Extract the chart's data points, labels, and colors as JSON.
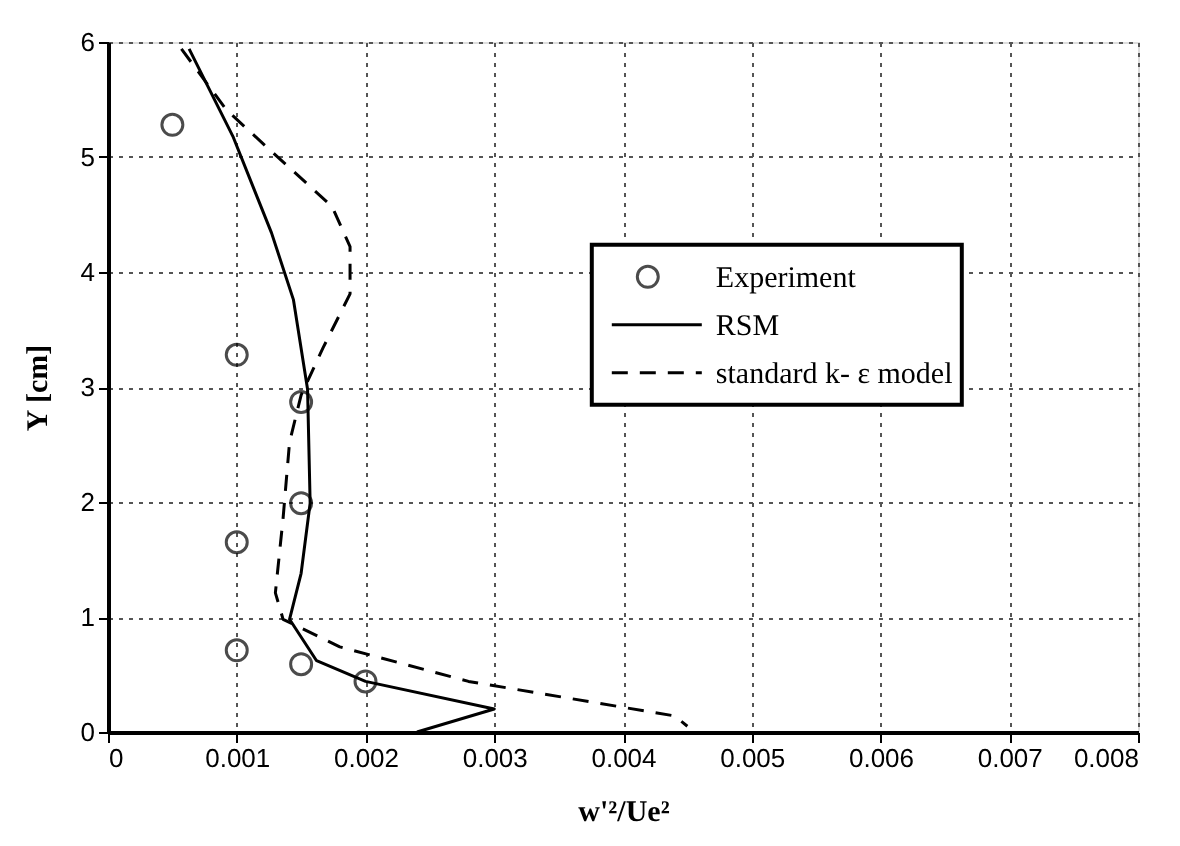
{
  "chart_data": {
    "type": "line",
    "xlabel": "w'²/Ue²",
    "ylabel": "Y [cm]",
    "xlim": [
      0,
      0.008
    ],
    "ylim": [
      0,
      6
    ],
    "xticks": [
      0,
      0.001,
      0.002,
      0.003,
      0.004,
      0.005,
      0.006,
      0.007,
      0.008
    ],
    "yticks": [
      0,
      1,
      2,
      3,
      4,
      5,
      6
    ],
    "grid": true,
    "legend": "right",
    "series": [
      {
        "name": "Experiment",
        "type": "scatter",
        "marker": "circle",
        "color": "#000000",
        "x": [
          0.0005,
          0.001,
          0.0015,
          0.0015,
          0.001,
          0.001,
          0.0015,
          0.002
        ],
        "values": [
          5.28,
          3.28,
          2.87,
          1.99,
          1.65,
          0.71,
          0.59,
          0.44
        ]
      },
      {
        "name": "RSM",
        "type": "line",
        "line_style": "solid",
        "color": "#000000",
        "x": [
          0.00063,
          0.00097,
          0.00127,
          0.00144,
          0.00155,
          0.00157,
          0.0015,
          0.00141,
          0.00162,
          0.002,
          0.003,
          0.0024
        ],
        "values": [
          5.94,
          5.18,
          4.34,
          3.76,
          2.98,
          1.99,
          1.38,
          0.98,
          0.62,
          0.44,
          0.2,
          0.0
        ]
      },
      {
        "name": "standard k- ε model",
        "type": "line",
        "line_style": "dashed",
        "color": "#000000",
        "x": [
          0.00057,
          0.00092,
          0.00121,
          0.00174,
          0.00188,
          0.00188,
          0.00167,
          0.0015,
          0.00141,
          0.00136,
          0.0013,
          0.00136,
          0.0018,
          0.0028,
          0.0044,
          0.0045
        ],
        "values": [
          5.94,
          5.41,
          5.11,
          4.57,
          4.22,
          3.81,
          3.34,
          2.93,
          2.52,
          1.86,
          1.21,
          0.98,
          0.74,
          0.44,
          0.14,
          0.05
        ]
      }
    ]
  }
}
